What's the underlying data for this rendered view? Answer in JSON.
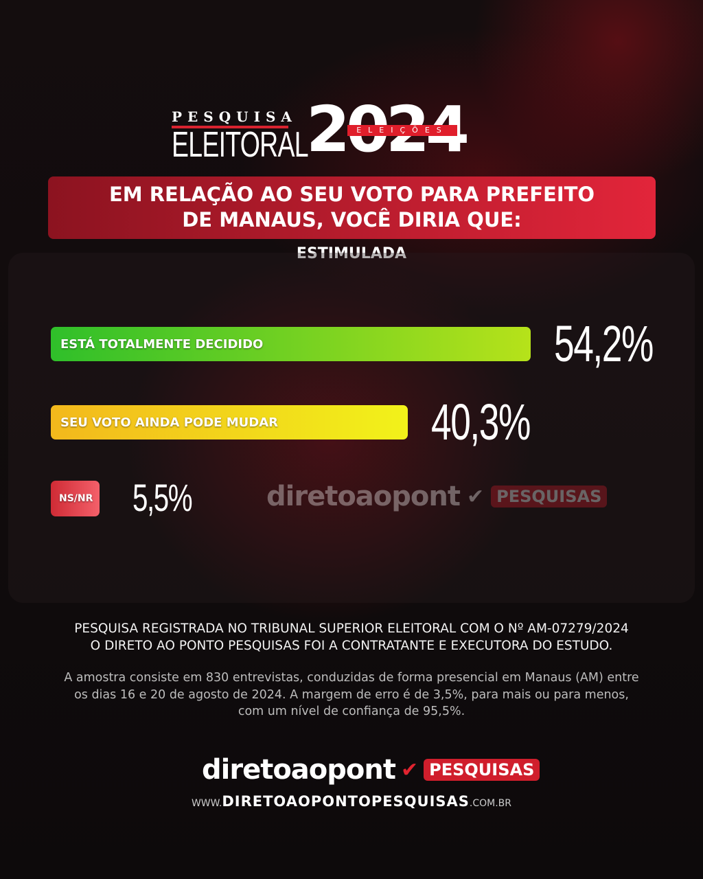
{
  "header": {
    "kicker": "PESQUISA",
    "title": "ELEITORAL",
    "year": "2024",
    "ribbon": "ELEIÇÕES"
  },
  "question": {
    "line1": "EM RELAÇÃO AO SEU VOTO PARA PREFEITO",
    "line2": "DE MANAUS, VOCÊ DIRIA QUE:"
  },
  "subtitle": "ESTIMULADA",
  "chart_data": {
    "type": "bar",
    "orientation": "horizontal",
    "title": "EM RELAÇÃO AO SEU VOTO PARA PREFEITO DE MANAUS, VOCÊ DIRIA QUE:",
    "categories": [
      "ESTÁ TOTALMENTE DECIDIDO",
      "SEU VOTO AINDA PODE MUDAR",
      "NS/NR"
    ],
    "values": [
      54.2,
      40.3,
      5.5
    ],
    "labels": [
      "54,2%",
      "40,3%",
      "5,5%"
    ],
    "colors": [
      [
        "#2fbf2a",
        "#b6e21a"
      ],
      [
        "#f3b81c",
        "#f2f21a"
      ],
      [
        "#cf2b35",
        "#f4606a"
      ]
    ],
    "grid": false
  },
  "watermark": {
    "brand": "diretoaopont",
    "badge": "PESQUISAS"
  },
  "notes": {
    "line1": "PESQUISA REGISTRADA NO TRIBUNAL SUPERIOR ELEITORAL COM O Nº AM-07279/2024",
    "line2": "O DIRETO AO PONTO PESQUISAS FOI A CONTRATANTE E EXECUTORA DO ESTUDO.",
    "method": "A amostra consiste em 830 entrevistas, conduzidas de forma presencial em Manaus (AM) entre os dias 16 e 20 de agosto de 2024. A margem de erro é de 3,5%, para mais ou para menos, com um nível de confiança de 95,5%."
  },
  "footer": {
    "brand": "diretoaopont",
    "badge": "PESQUISAS",
    "url_prefix": "WWW.",
    "url_main": "DIRETOAOPONTOPESQUISAS",
    "url_suffix": ".COM.BR"
  }
}
